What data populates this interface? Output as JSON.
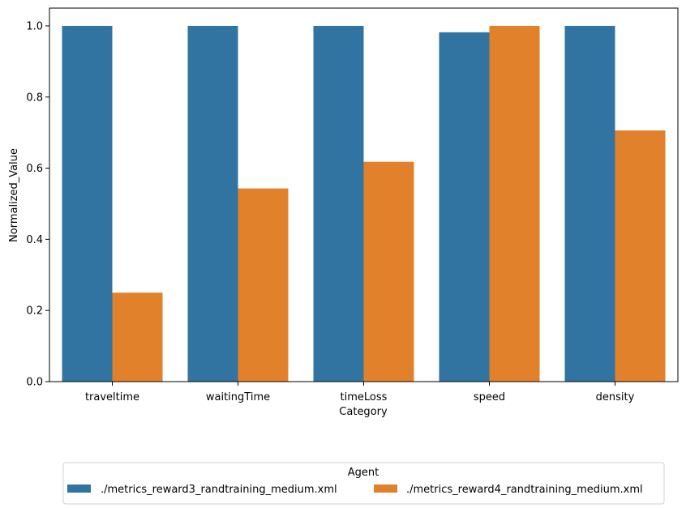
{
  "chart_data": {
    "type": "bar",
    "categories": [
      "traveltime",
      "waitingTime",
      "timeLoss",
      "speed",
      "density"
    ],
    "series": [
      {
        "name": "./metrics_reward3_randtraining_medium.xml",
        "values": [
          1.0,
          1.0,
          1.0,
          0.982,
          1.0
        ],
        "color": "#3274a1"
      },
      {
        "name": "./metrics_reward4_randtraining_medium.xml",
        "values": [
          0.25,
          0.543,
          0.618,
          1.0,
          0.706
        ],
        "color": "#e1812c"
      }
    ],
    "title": "",
    "xlabel": "Category",
    "ylabel": "Normalized_Value",
    "ylim": [
      0,
      1.05
    ],
    "yticks": [
      "0.0",
      "0.2",
      "0.4",
      "0.6",
      "0.8",
      "1.0"
    ],
    "legend": {
      "title": "Agent",
      "placement": "bottom-center"
    },
    "grid": false
  }
}
